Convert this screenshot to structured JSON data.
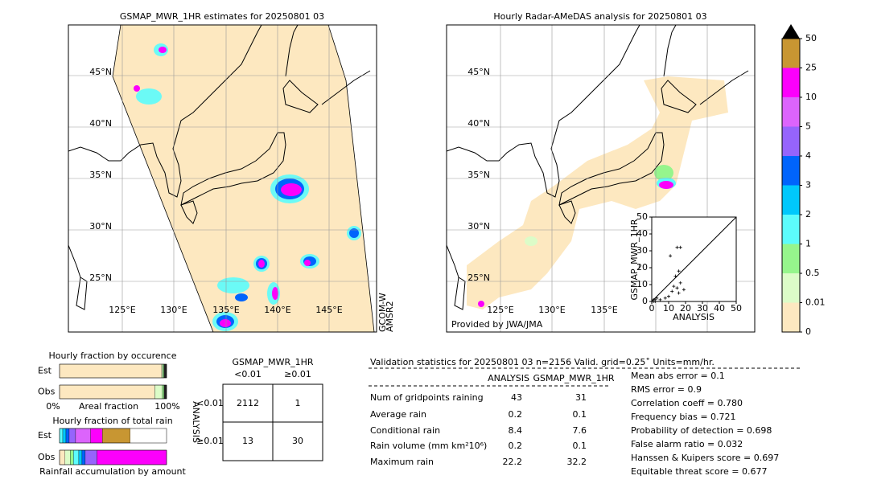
{
  "left_map": {
    "title": "GSMAP_MWR_1HR estimates for 20250801 03",
    "lat_labels": [
      "45°N",
      "40°N",
      "35°N",
      "30°N",
      "25°N"
    ],
    "lon_labels": [
      "125°E",
      "130°E",
      "135°E",
      "140°E",
      "145°E"
    ],
    "satellite": [
      "GCOM-W",
      "AMSR2"
    ]
  },
  "right_map": {
    "title": "Hourly Radar-AMeDAS analysis for 20250801 03",
    "lat_labels": [
      "45°N",
      "40°N",
      "35°N",
      "30°N",
      "25°N"
    ],
    "lon_labels": [
      "125°E",
      "130°E",
      "135°E"
    ],
    "credit": "Provided by JWA/JMA"
  },
  "scatter": {
    "type": "scatter",
    "xlabel": "ANALYSIS",
    "ylabel": "GSMAP_MWR_1HR",
    "xlim": [
      0,
      50
    ],
    "ylim": [
      0,
      50
    ],
    "xticks": [
      0,
      10,
      20,
      30,
      40,
      50
    ],
    "yticks": [
      0,
      10,
      20,
      30,
      40,
      50
    ],
    "x": [
      15,
      17,
      11,
      16,
      14,
      13,
      17,
      15,
      19,
      12,
      16,
      10,
      8,
      5,
      3,
      2,
      1,
      0,
      1,
      2
    ],
    "y": [
      32,
      32,
      27,
      18,
      15,
      9,
      11,
      8,
      7,
      6,
      5,
      3,
      2,
      1,
      2,
      1,
      1,
      0,
      0,
      0
    ]
  },
  "colorbar": {
    "levels": [
      0,
      0.01,
      0.5,
      1,
      2,
      3,
      4,
      5,
      10,
      25,
      50
    ],
    "colors": [
      "#fde8c0",
      "#dcfcc8",
      "#96f58c",
      "#5cfcfc",
      "#00c8fc",
      "#0064fc",
      "#9664fc",
      "#dc64fc",
      "#fc00fc",
      "#c89632"
    ],
    "over_color": "#000000"
  },
  "occurrence": {
    "title": "Hourly fraction by occurence",
    "xlabel": "Areal fraction",
    "xmin_label": "0%",
    "xmax_label": "100%",
    "rows": [
      {
        "label": "Est",
        "segments": [
          {
            "color": "#fde8c0",
            "value": 95.5
          },
          {
            "color": "#dcfcc8",
            "value": 1
          },
          {
            "color": "#96f58c",
            "value": 1
          },
          {
            "color": "#222222",
            "value": 2.5
          }
        ]
      },
      {
        "label": "Obs",
        "segments": [
          {
            "color": "#fde8c0",
            "value": 89
          },
          {
            "color": "#dcfcc8",
            "value": 7
          },
          {
            "color": "#96f58c",
            "value": 1.5
          },
          {
            "color": "#222222",
            "value": 2.5
          }
        ]
      }
    ]
  },
  "total_rain": {
    "title": "Hourly fraction of total rain",
    "xlabel": "Rainfall accumulation by amount",
    "rows": [
      {
        "label": "Est",
        "segments": [
          {
            "color": "#5cfcfc",
            "value": 3
          },
          {
            "color": "#00c8fc",
            "value": 3
          },
          {
            "color": "#0064fc",
            "value": 3
          },
          {
            "color": "#9664fc",
            "value": 6
          },
          {
            "color": "#dc64fc",
            "value": 14
          },
          {
            "color": "#fc00fc",
            "value": 11
          },
          {
            "color": "#c89632",
            "value": 26
          }
        ]
      },
      {
        "label": "Obs",
        "segments": [
          {
            "color": "#fde8c0",
            "value": 5
          },
          {
            "color": "#dcfcc8",
            "value": 5
          },
          {
            "color": "#96f58c",
            "value": 3
          },
          {
            "color": "#5cfcfc",
            "value": 5
          },
          {
            "color": "#00c8fc",
            "value": 3
          },
          {
            "color": "#0064fc",
            "value": 3
          },
          {
            "color": "#9664fc",
            "value": 11
          },
          {
            "color": "#fc00fc",
            "value": 65
          }
        ]
      }
    ]
  },
  "contingency": {
    "title": "GSMAP_MWR_1HR",
    "columns": [
      "<0.01",
      "≥0.01"
    ],
    "row_title": "ANALYSIS",
    "rows": [
      "<0.01",
      "≥0.01"
    ],
    "cells": [
      [
        2112,
        1
      ],
      [
        13,
        30
      ]
    ]
  },
  "validation": {
    "header": "Validation statistics for 20250801 03  n=2156 Valid. grid=0.25˚ Units=mm/hr.",
    "columns": [
      "ANALYSIS",
      "GSMAP_MWR_1HR"
    ],
    "rows": [
      {
        "label": "Num of gridpoints raining",
        "values": [
          43,
          31
        ]
      },
      {
        "label": "Average rain",
        "values": [
          0.2,
          0.1
        ]
      },
      {
        "label": "Conditional rain",
        "values": [
          8.4,
          7.6
        ]
      },
      {
        "label": "Rain volume (mm km²10⁶)",
        "values": [
          0.2,
          0.1
        ]
      },
      {
        "label": "Maximum rain",
        "values": [
          22.2,
          32.2
        ]
      }
    ],
    "scores": [
      "Mean abs error =    0.1",
      "RMS error =    0.9",
      "Correlation coeff =  0.780",
      "Frequency bias =  0.721",
      "Probability of detection =  0.698",
      "False alarm ratio =  0.032",
      "Hanssen & Kuipers score =  0.697",
      "Equitable threat score =  0.677"
    ]
  }
}
